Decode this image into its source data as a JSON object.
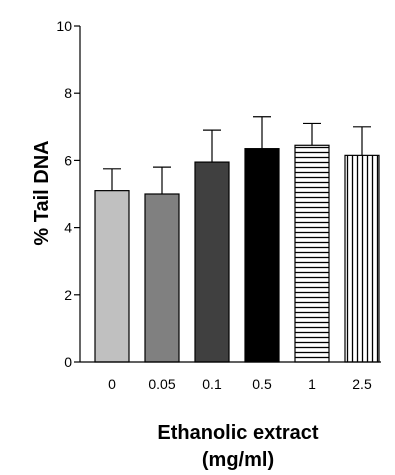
{
  "chart_data": {
    "type": "bar",
    "title": "",
    "ylabel": "% Tail DNA",
    "xlabel_lines": [
      "Ethanolic extract",
      "(mg/ml)"
    ],
    "categories": [
      "0",
      "0.05",
      "0.1",
      "0.5",
      "1",
      "2.5"
    ],
    "values": [
      5.1,
      5.0,
      5.95,
      6.35,
      6.45,
      6.15
    ],
    "errors": [
      0.65,
      0.8,
      0.95,
      0.95,
      0.65,
      0.85
    ],
    "ylim": [
      0,
      10
    ],
    "yticks": [
      0,
      2,
      4,
      6,
      8,
      10
    ],
    "grid": false,
    "bar_styles": [
      {
        "fill": "#c0c0c0",
        "pattern": "solid"
      },
      {
        "fill": "#808080",
        "pattern": "solid"
      },
      {
        "fill": "#404040",
        "pattern": "solid"
      },
      {
        "fill": "#000000",
        "pattern": "solid"
      },
      {
        "fill": "#ffffff",
        "pattern": "horizontal-stripes"
      },
      {
        "fill": "#ffffff",
        "pattern": "vertical-stripes"
      }
    ]
  }
}
